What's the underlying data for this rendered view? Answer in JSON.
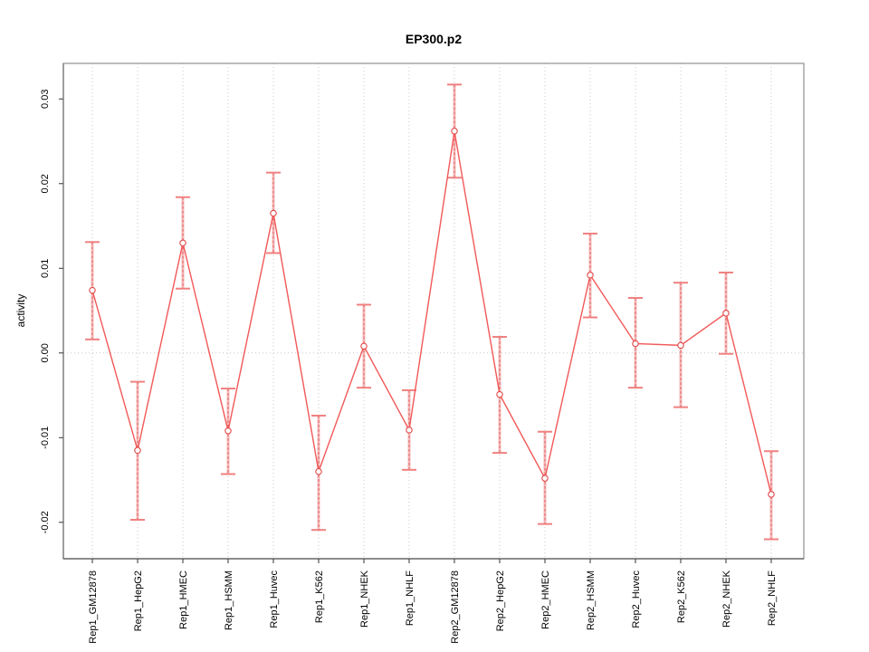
{
  "figure": {
    "title": "EP300.p2"
  },
  "chart_data": {
    "type": "line",
    "title": "EP300.p2",
    "xlabel": "",
    "ylabel": "activity",
    "categories": [
      "Rep1_GM12878",
      "Rep1_HepG2",
      "Rep1_HMEC",
      "Rep1_HSMM",
      "Rep1_Huvec",
      "Rep1_K562",
      "Rep1_NHEK",
      "Rep1_NHLF",
      "Rep2_GM12878",
      "Rep2_HepG2",
      "Rep2_HMEC",
      "Rep2_HSMM",
      "Rep2_Huvec",
      "Rep2_K562",
      "Rep2_NHEK",
      "Rep2_NHLF"
    ],
    "series": [
      {
        "name": "activity",
        "values": [
          0.0074,
          -0.0115,
          0.013,
          -0.0092,
          0.0165,
          -0.014,
          0.0008,
          -0.0091,
          0.0262,
          -0.0049,
          -0.0148,
          0.0092,
          0.0011,
          0.0009,
          0.0047,
          -0.0167
        ],
        "upper": [
          0.0131,
          -0.0034,
          0.0184,
          -0.0042,
          0.0213,
          -0.0074,
          0.0057,
          -0.0044,
          0.0317,
          0.0019,
          -0.0093,
          0.0141,
          0.0065,
          0.0083,
          0.0095,
          -0.0116
        ],
        "lower": [
          0.0016,
          -0.0197,
          0.0076,
          -0.0143,
          0.0118,
          -0.0209,
          -0.0041,
          -0.0138,
          0.0207,
          -0.0118,
          -0.0202,
          0.0042,
          -0.0041,
          -0.0064,
          -0.0001,
          -0.022
        ]
      }
    ],
    "ylim": [
      -0.0243,
      0.0342
    ],
    "yticks": [
      -0.02,
      -0.01,
      0,
      0.01,
      0.02,
      0.03
    ],
    "ytick_labels": [
      "-0.02",
      "-0.01",
      "0.00",
      "0.01",
      "0.02",
      "0.03"
    ],
    "grid": {
      "vertical_at_categories": true,
      "horizontal_at_zero": true
    },
    "legend": "none",
    "marker": "open-circle",
    "colors": {
      "line": "#f25858",
      "marker": "#e04848",
      "errorbar_stem": "#f6bcbc",
      "errorbar_dash": "#e06060",
      "errorbar_cap": "#f08080",
      "grid": "#c8c8c8",
      "box": "#909090",
      "axis": "#303030",
      "text": "#000000",
      "background": "#ffffff"
    }
  }
}
